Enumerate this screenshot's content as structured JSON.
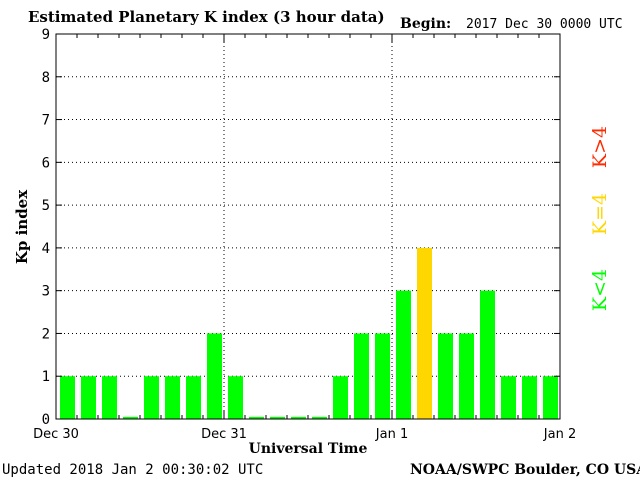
{
  "header": {
    "title": "Estimated Planetary K index (3 hour data)",
    "begin_label": "Begin:",
    "begin_value": "2017 Dec 30 0000 UTC"
  },
  "footer": {
    "updated": "Updated 2018 Jan  2 00:30:02 UTC",
    "source": "NOAA/SWPC Boulder, CO USA"
  },
  "legend": {
    "below": "K<4",
    "equal": "K=4",
    "above": "K>4",
    "colors": {
      "below": "#00ff00",
      "equal": "#ffd700",
      "above": "#ff2a00"
    }
  },
  "chart_data": {
    "type": "bar",
    "title": "Estimated Planetary K index (3 hour data)",
    "xlabel": "Universal Time",
    "ylabel": "Kp index",
    "ylim": [
      0,
      9
    ],
    "yticks": [
      "0",
      "1",
      "2",
      "3",
      "4",
      "5",
      "6",
      "7",
      "8",
      "9"
    ],
    "xtick_labels": [
      "Dec 30",
      "Dec 31",
      "Jan 1",
      "Jan 2"
    ],
    "interval_hours": 3,
    "grid": "dotted",
    "values": [
      1,
      1,
      1,
      0.05,
      1,
      1,
      1,
      2,
      1,
      0.05,
      0.05,
      0.05,
      0.05,
      1,
      2,
      2,
      3,
      4,
      2,
      2,
      3,
      1,
      1,
      1
    ]
  }
}
